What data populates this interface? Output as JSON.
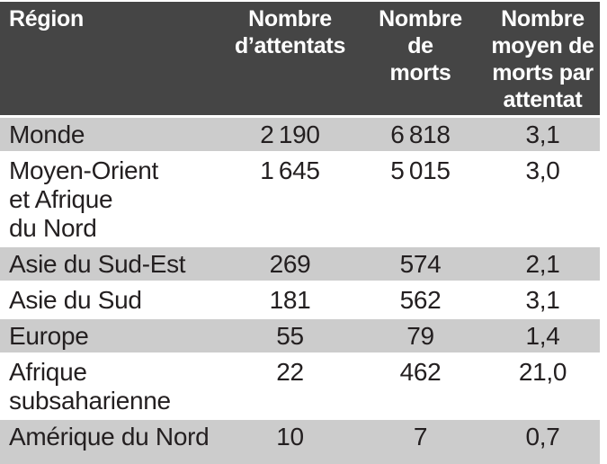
{
  "chart_data": {
    "type": "table",
    "title": "",
    "columns": [
      "Région",
      "Nombre\nd’attentats",
      "Nombre\nde\nmorts",
      "Nombre\nmoyen de\nmorts par\nattentat"
    ],
    "rows": [
      {
        "region": "Monde",
        "attacks": "2 190",
        "deaths": "6 818",
        "avg": "3,1"
      },
      {
        "region": "Moyen-Orient\net Afrique\ndu Nord",
        "attacks": "1 645",
        "deaths": "5 015",
        "avg": "3,0"
      },
      {
        "region": "Asie du Sud-Est",
        "attacks": "269",
        "deaths": "574",
        "avg": "2,1"
      },
      {
        "region": "Asie du Sud",
        "attacks": "181",
        "deaths": "562",
        "avg": "3,1"
      },
      {
        "region": "Europe",
        "attacks": "55",
        "deaths": "79",
        "avg": "1,4"
      },
      {
        "region": "Afrique\nsubsaharienne",
        "attacks": "22",
        "deaths": "462",
        "avg": "21,0"
      },
      {
        "region": "Amérique du Nord",
        "attacks": "10",
        "deaths": "7",
        "avg": "0,7"
      }
    ],
    "numeric": {
      "categories": [
        "Monde",
        "Moyen-Orient et Afrique du Nord",
        "Asie du Sud-Est",
        "Asie du Sud",
        "Europe",
        "Afrique subsaharienne",
        "Amérique du Nord"
      ],
      "series": [
        {
          "name": "Nombre d’attentats",
          "values": [
            2190,
            1645,
            269,
            181,
            55,
            22,
            10
          ]
        },
        {
          "name": "Nombre de morts",
          "values": [
            6818,
            5015,
            574,
            562,
            79,
            462,
            7
          ]
        },
        {
          "name": "Nombre moyen de morts par attentat",
          "values": [
            3.1,
            3.0,
            2.1,
            3.1,
            1.4,
            21.0,
            0.7
          ]
        }
      ]
    },
    "colors": {
      "header_bg": "#454545",
      "header_text": "#ffffff",
      "row_stripe_bg": "#cccccc",
      "row_plain_bg": "#ffffff",
      "body_text": "#231f20",
      "separator": "#ffffff"
    }
  }
}
